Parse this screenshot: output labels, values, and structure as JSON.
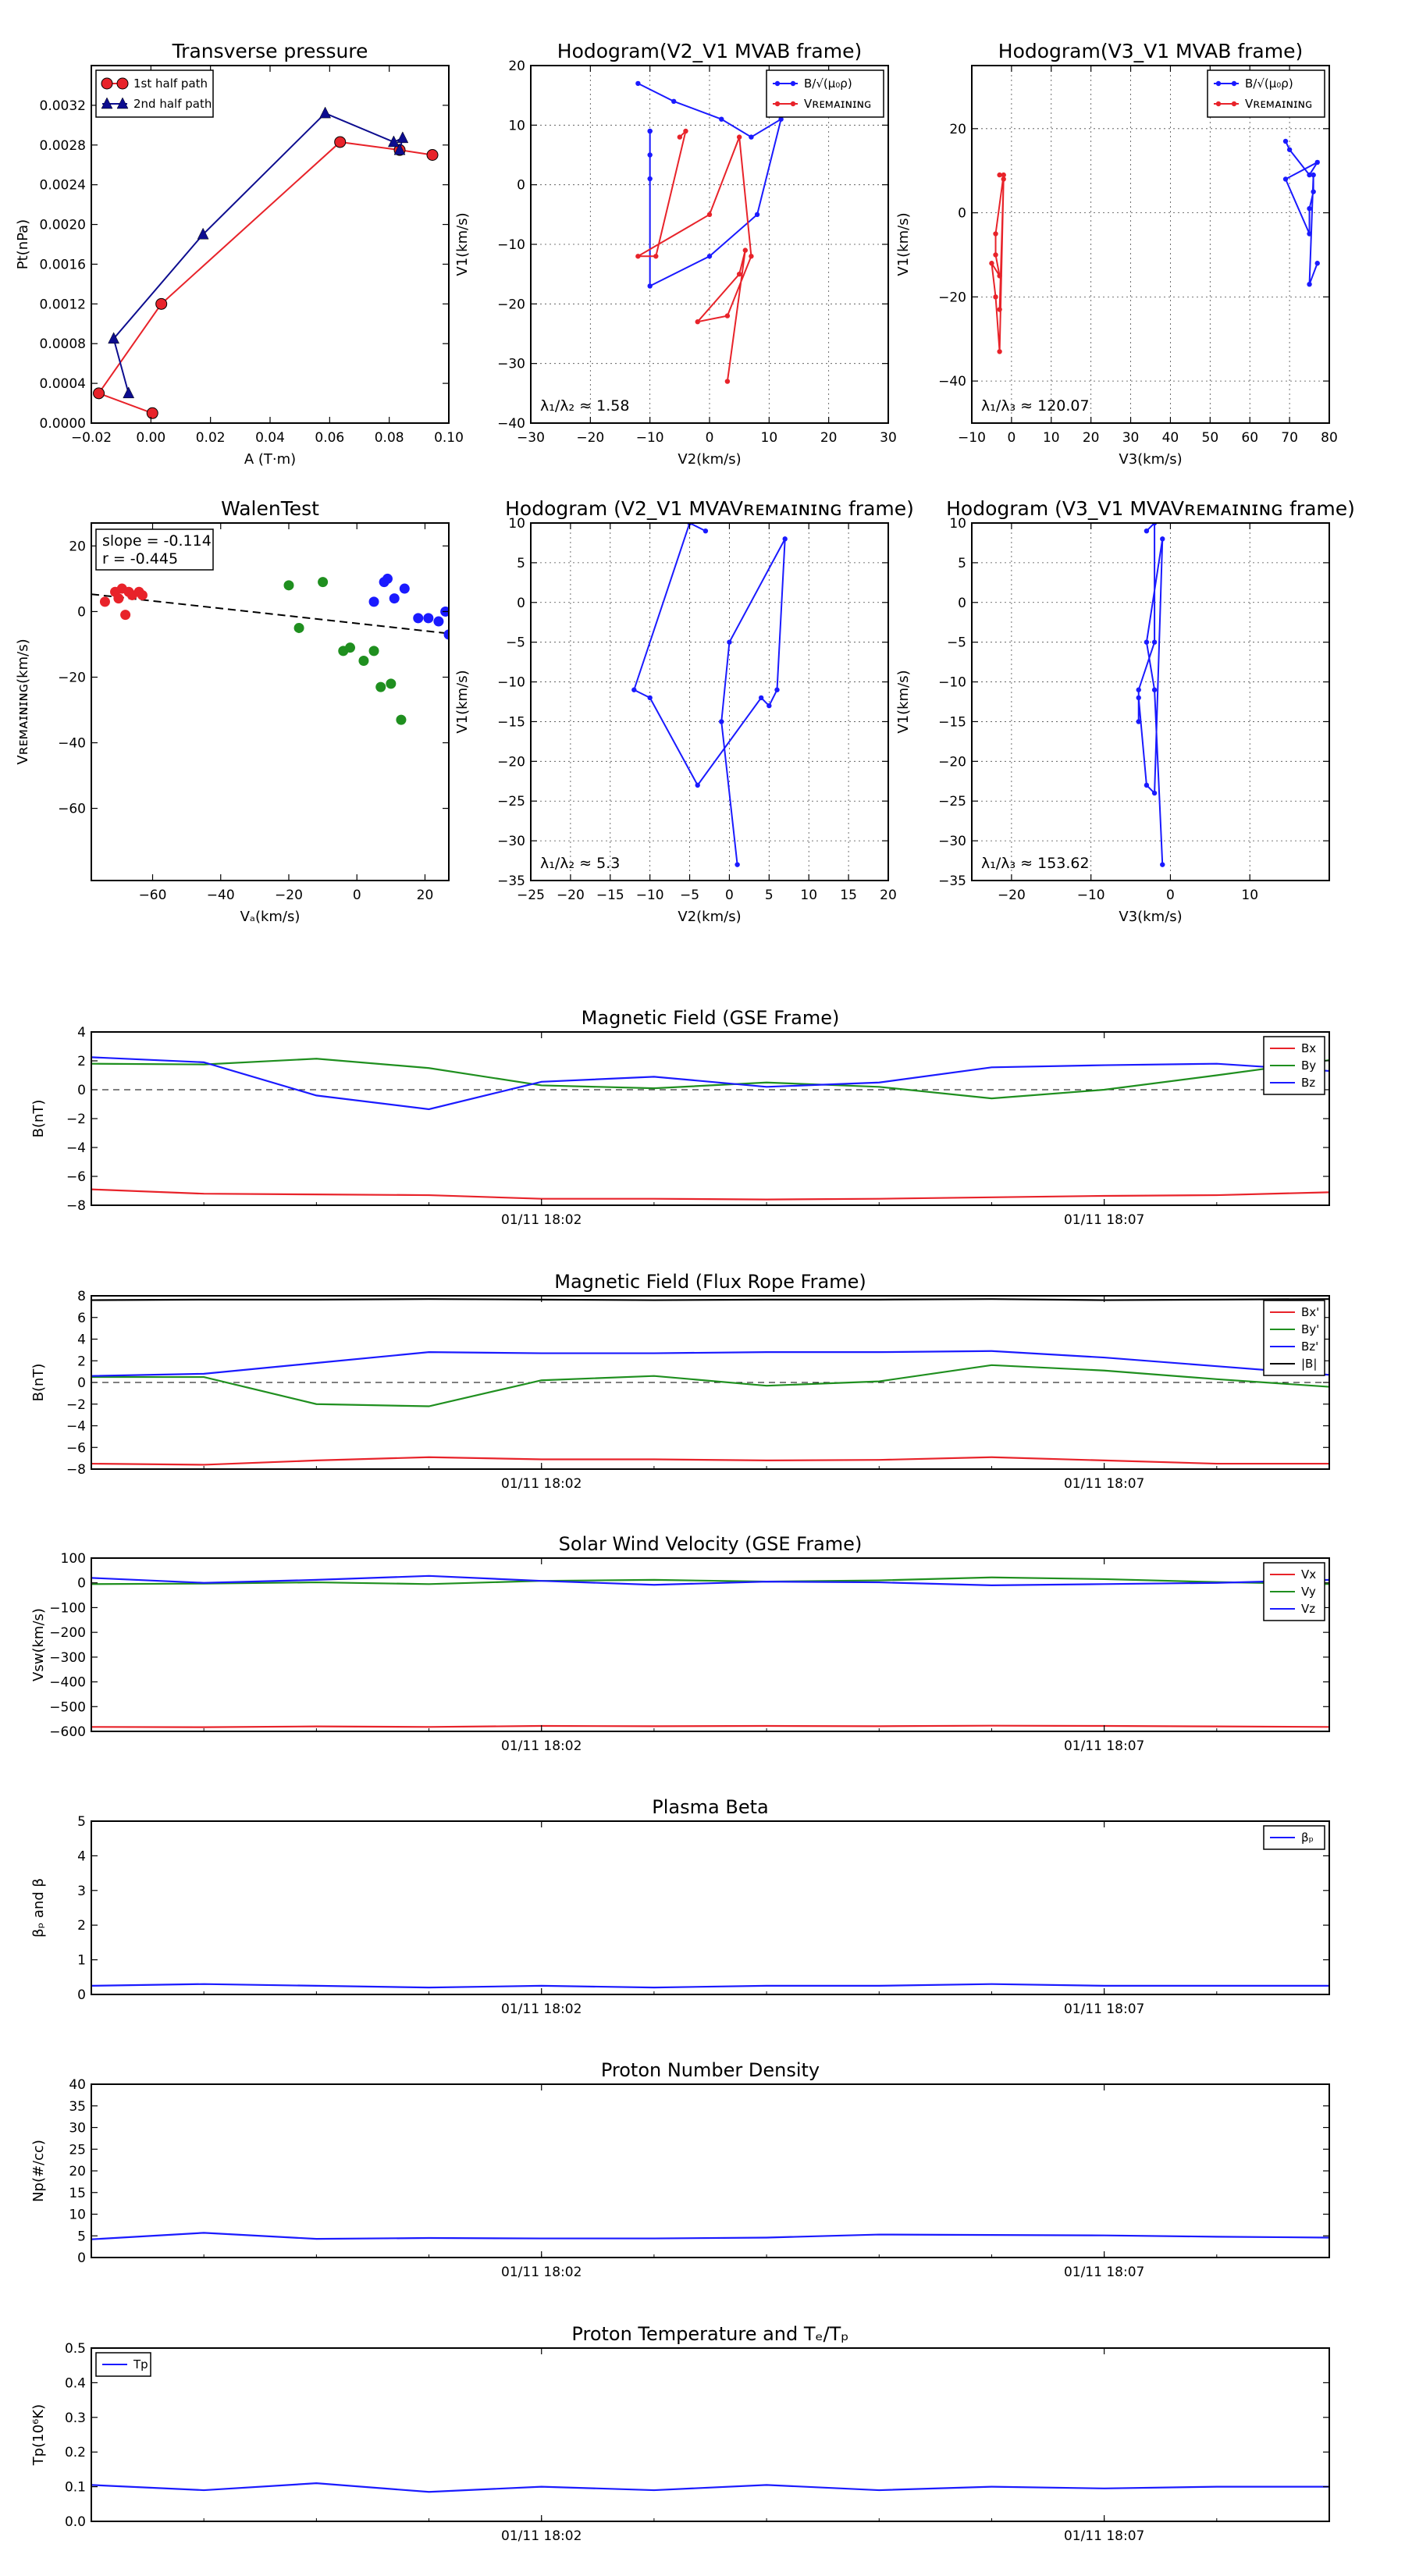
{
  "chart_data": [
    {
      "id": "p_tp",
      "type": "line",
      "title": "Transverse pressure",
      "xlabel": "A (T·m)",
      "ylabel": "Pt(nPa)",
      "xlim": [
        -0.02,
        0.1
      ],
      "ylim": [
        0,
        0.0036
      ],
      "xticks": [
        -0.02,
        0.0,
        0.02,
        0.04,
        0.06,
        0.08,
        0.1
      ],
      "xticklabels": [
        "−0.02",
        "0.00",
        "0.02",
        "0.04",
        "0.06",
        "0.08",
        "0.10"
      ],
      "yticks": [
        0,
        0.0004,
        0.0008,
        0.0012,
        0.0016,
        0.002,
        0.0024,
        0.0028,
        0.0032
      ],
      "yticklabels": [
        "0.0000",
        "0.0004",
        "0.0008",
        "0.0012",
        "0.0016",
        "0.0020",
        "0.0024",
        "0.0028",
        "0.0032"
      ],
      "grid": false,
      "legend": "top-left",
      "series": [
        {
          "name": "1st half path",
          "color": "#e8232a",
          "marker": "circle",
          "x": [
            0.0005,
            -0.0175,
            0.0035,
            0.0635,
            0.0835,
            0.0945
          ],
          "y": [
            0.0001,
            0.0003,
            0.0012,
            0.00283,
            0.00275,
            0.0027
          ]
        },
        {
          "name": "2nd half path",
          "color": "#0d0d8f",
          "marker": "triangle",
          "x": [
            -0.0075,
            -0.0125,
            0.0175,
            0.0585,
            0.0815,
            0.0845,
            0.0835
          ],
          "y": [
            0.0003,
            0.00085,
            0.0019,
            0.00312,
            0.00283,
            0.00287,
            0.00275
          ]
        }
      ]
    },
    {
      "id": "p_hv2",
      "type": "line",
      "title": "Hodogram(V2_V1 MVAB frame)",
      "xlabel": "V2(km/s)",
      "ylabel": "V1(km/s)",
      "xlim": [
        -30,
        30
      ],
      "ylim": [
        -40,
        20
      ],
      "xticks": [
        -30,
        -20,
        -10,
        0,
        10,
        20,
        30
      ],
      "xticklabels": [
        "−30",
        "−20",
        "−10",
        "0",
        "10",
        "20",
        "30"
      ],
      "yticks": [
        -40,
        -30,
        -20,
        -10,
        0,
        10,
        20
      ],
      "yticklabels": [
        "−40",
        "−30",
        "−20",
        "−10",
        "0",
        "10",
        "20"
      ],
      "grid": true,
      "legend": "top-right",
      "annotation": "λ₁/λ₂ ≈ 1.58",
      "series": [
        {
          "name": "B/√(μ₀ρ)",
          "color": "#1a1aff",
          "x": [
            -12,
            -6,
            2,
            7,
            12,
            8,
            0,
            -10,
            -10,
            -10,
            -10,
            -10
          ],
          "y": [
            17,
            14,
            11,
            8,
            11,
            -5,
            -12,
            -17,
            1,
            5,
            9,
            9
          ]
        },
        {
          "name": "Vʀᴇᴍᴀɪɴɪɴɢ",
          "color": "#e8232a",
          "x": [
            -5,
            -4,
            -9,
            -12,
            0,
            5,
            7,
            3,
            -2,
            5,
            6,
            3
          ],
          "y": [
            8,
            9,
            -12,
            -12,
            -5,
            8,
            -12,
            -22,
            -23,
            -15,
            -11,
            -33
          ]
        }
      ]
    },
    {
      "id": "p_hv3",
      "type": "line",
      "title": "Hodogram(V3_V1 MVAB frame)",
      "xlabel": "V3(km/s)",
      "ylabel": "V1(km/s)",
      "xlim": [
        -10,
        80
      ],
      "ylim": [
        -50,
        35
      ],
      "xticks": [
        -10,
        0,
        10,
        20,
        30,
        40,
        50,
        60,
        70,
        80
      ],
      "xticklabels": [
        "−10",
        "0",
        "10",
        "20",
        "30",
        "40",
        "50",
        "60",
        "70",
        "80"
      ],
      "yticks": [
        -40,
        -20,
        0,
        20
      ],
      "yticklabels": [
        "−40",
        "−20",
        "0",
        "20"
      ],
      "grid": true,
      "legend": "top-right",
      "annotation": "λ₁/λ₃ ≈ 120.07",
      "series": [
        {
          "name": "B/√(μ₀ρ)",
          "color": "#1a1aff",
          "x": [
            69,
            70,
            75,
            77,
            69,
            75,
            75,
            76,
            76,
            75,
            77
          ],
          "y": [
            17,
            15,
            9,
            12,
            8,
            -5,
            1,
            5,
            9,
            -17,
            -12
          ]
        },
        {
          "name": "Vʀᴇᴍᴀɪɴɪɴɢ",
          "color": "#e8232a",
          "x": [
            -3,
            -2,
            -4,
            -4,
            -3,
            -5,
            -4,
            -3,
            -2,
            -3
          ],
          "y": [
            9,
            9,
            -5,
            -10,
            -15,
            -12,
            -20,
            -33,
            8,
            -23
          ]
        }
      ]
    },
    {
      "id": "p_walen",
      "type": "scatter",
      "title": "WalenTest",
      "xlabel": "Vₐ(km/s)",
      "ylabel": "Vʀᴇᴍᴀɪɴɪɴɢ(km/s)",
      "xlim": [
        -78,
        27
      ],
      "ylim": [
        -82,
        27
      ],
      "xticks": [
        -60,
        -40,
        -20,
        0,
        20
      ],
      "xticklabels": [
        "−60",
        "−40",
        "−20",
        "0",
        "20"
      ],
      "yticks": [
        -60,
        -40,
        -20,
        0,
        20
      ],
      "yticklabels": [
        "−60",
        "−40",
        "−20",
        "0",
        "20"
      ],
      "grid": false,
      "annotation": [
        "slope = -0.114",
        "r = -0.445"
      ],
      "fit_line": {
        "slope": -0.114,
        "intercept": -3.6
      },
      "series": [
        {
          "color": "#e8232a",
          "x": [
            -71,
            -69,
            -67,
            -66,
            -64,
            -63,
            -70,
            -74,
            -68
          ],
          "y": [
            6,
            7,
            6,
            5,
            6,
            5,
            4,
            3,
            -1
          ]
        },
        {
          "color": "#1f8f1f",
          "x": [
            -20,
            -10,
            -17,
            -4,
            -2,
            2,
            5,
            7,
            10,
            13
          ],
          "y": [
            8,
            9,
            -5,
            -12,
            -11,
            -15,
            -12,
            -23,
            -22,
            -33
          ]
        },
        {
          "color": "#1a1aff",
          "x": [
            5,
            8,
            9,
            11,
            14,
            18,
            21,
            24,
            26,
            27
          ],
          "y": [
            3,
            9,
            10,
            4,
            7,
            -2,
            -2,
            -3,
            0,
            -7
          ]
        }
      ]
    },
    {
      "id": "p_hv2r",
      "type": "line",
      "title": "Hodogram (V2_V1 MVAVʀᴇᴍᴀɪɴɪɴɢ frame)",
      "xlabel": "V2(km/s)",
      "ylabel": "V1(km/s)",
      "xlim": [
        -25,
        20
      ],
      "ylim": [
        -35,
        10
      ],
      "xticks": [
        -25,
        -20,
        -15,
        -10,
        -5,
        0,
        5,
        10,
        15,
        20
      ],
      "xticklabels": [
        "−25",
        "−20",
        "−15",
        "−10",
        "−5",
        "0",
        "5",
        "10",
        "15",
        "20"
      ],
      "yticks": [
        -35,
        -30,
        -25,
        -20,
        -15,
        -10,
        -5,
        0,
        5,
        10
      ],
      "yticklabels": [
        "−35",
        "−30",
        "−25",
        "−20",
        "−15",
        "−10",
        "−5",
        "0",
        "5",
        "10"
      ],
      "grid": true,
      "annotation": "λ₁/λ₂ ≈ 5.3",
      "series": [
        {
          "color": "#1a1aff",
          "x": [
            -3,
            -5,
            -12,
            -10,
            -4,
            4,
            5,
            6,
            7,
            0,
            -1,
            1
          ],
          "y": [
            9,
            10,
            -11,
            -12,
            -23,
            -12,
            -13,
            -11,
            8,
            -5,
            -15,
            -33
          ]
        }
      ]
    },
    {
      "id": "p_hv3r",
      "type": "line",
      "title": "Hodogram (V3_V1 MVAVʀᴇᴍᴀɪɴɪɴɢ frame)",
      "xlabel": "V3(km/s)",
      "ylabel": "V1(km/s)",
      "xlim": [
        -25,
        20
      ],
      "ylim": [
        -35,
        10
      ],
      "xticks": [
        -20,
        -10,
        0,
        10
      ],
      "xticklabels": [
        "−20",
        "−10",
        "0",
        "10"
      ],
      "yticks": [
        -35,
        -30,
        -25,
        -20,
        -15,
        -10,
        -5,
        0,
        5,
        10
      ],
      "yticklabels": [
        "−35",
        "−30",
        "−25",
        "−20",
        "−15",
        "−10",
        "−5",
        "0",
        "5",
        "10"
      ],
      "grid": true,
      "annotation": "λ₁/λ₃ ≈ 153.62",
      "series": [
        {
          "color": "#1a1aff",
          "x": [
            -3,
            -2,
            -2,
            -4,
            -4,
            -4,
            -3,
            -2,
            -1,
            -3,
            -2,
            -1
          ],
          "y": [
            9,
            10,
            -5,
            -11,
            -15,
            -12,
            -23,
            -24,
            8,
            -5,
            -11,
            -33
          ]
        }
      ]
    },
    {
      "id": "p_bgse",
      "type": "line",
      "title": "Magnetic Field (GSE Frame)",
      "ylabel": "B(nT)",
      "x": [
        0,
        1,
        2,
        3,
        4,
        5,
        6,
        7,
        8,
        9,
        10,
        11
      ],
      "xlim": [
        0,
        11
      ],
      "ylim": [
        -8,
        4
      ],
      "yticks": [
        -8,
        -6,
        -4,
        -2,
        0,
        2,
        4
      ],
      "yticklabels": [
        "−8",
        "−6",
        "−4",
        "−2",
        "0",
        "2",
        "4"
      ],
      "time_ticks": {
        "positions": [
          4,
          9
        ],
        "labels": [
          "01/11 18:02",
          "01/11 18:07"
        ]
      },
      "zero_line": true,
      "legend": "top-right",
      "series": [
        {
          "name": "Bx",
          "color": "#e8232a",
          "values": [
            -6.9,
            -7.2,
            -7.25,
            -7.3,
            -7.55,
            -7.55,
            -7.6,
            -7.55,
            -7.45,
            -7.35,
            -7.3,
            -7.1
          ]
        },
        {
          "name": "By",
          "color": "#1f8f1f",
          "values": [
            1.8,
            1.75,
            2.15,
            1.5,
            0.3,
            0.1,
            0.5,
            0.2,
            -0.6,
            0.0,
            1.0,
            2.05
          ]
        },
        {
          "name": "Bz",
          "color": "#1a1aff",
          "values": [
            2.25,
            1.9,
            -0.4,
            -1.35,
            0.55,
            0.9,
            0.2,
            0.5,
            1.55,
            1.7,
            1.8,
            1.3
          ]
        }
      ]
    },
    {
      "id": "p_bfr",
      "type": "line",
      "title": "Magnetic Field (Flux Rope Frame)",
      "ylabel": "B(nT)",
      "x": [
        0,
        1,
        2,
        3,
        4,
        5,
        6,
        7,
        8,
        9,
        10,
        11
      ],
      "xlim": [
        0,
        11
      ],
      "ylim": [
        -8,
        8
      ],
      "yticks": [
        -8,
        -6,
        -4,
        -2,
        0,
        2,
        4,
        6,
        8
      ],
      "yticklabels": [
        "−8",
        "−6",
        "−4",
        "−2",
        "0",
        "2",
        "4",
        "6",
        "8"
      ],
      "time_ticks": {
        "positions": [
          4,
          9
        ],
        "labels": [
          "01/11 18:02",
          "01/11 18:07"
        ]
      },
      "zero_line": true,
      "legend": "top-right",
      "series": [
        {
          "name": "Bx'",
          "color": "#e8232a",
          "values": [
            -7.5,
            -7.6,
            -7.2,
            -6.9,
            -7.1,
            -7.1,
            -7.2,
            -7.15,
            -6.9,
            -7.2,
            -7.5,
            -7.5
          ]
        },
        {
          "name": "By'",
          "color": "#1f8f1f",
          "values": [
            0.5,
            0.5,
            -2.0,
            -2.2,
            0.2,
            0.6,
            -0.3,
            0.1,
            1.6,
            1.1,
            0.3,
            -0.4
          ]
        },
        {
          "name": "Bz'",
          "color": "#1a1aff",
          "values": [
            0.6,
            0.8,
            1.8,
            2.8,
            2.7,
            2.7,
            2.8,
            2.8,
            2.9,
            2.3,
            1.5,
            0.7
          ]
        },
        {
          "name": "|B|",
          "color": "#000000",
          "values": [
            7.6,
            7.65,
            7.65,
            7.7,
            7.65,
            7.6,
            7.65,
            7.65,
            7.7,
            7.6,
            7.65,
            7.7
          ]
        }
      ]
    },
    {
      "id": "p_vsw",
      "type": "line",
      "title": "Solar Wind Velocity (GSE Frame)",
      "ylabel": "Vsw(km/s)",
      "x": [
        0,
        1,
        2,
        3,
        4,
        5,
        6,
        7,
        8,
        9,
        10,
        11
      ],
      "xlim": [
        0,
        11
      ],
      "ylim": [
        -600,
        100
      ],
      "yticks": [
        -600,
        -500,
        -400,
        -300,
        -200,
        -100,
        0,
        100
      ],
      "yticklabels": [
        "−600",
        "−500",
        "−400",
        "−300",
        "−200",
        "−100",
        "0",
        "100"
      ],
      "time_ticks": {
        "positions": [
          4,
          9
        ],
        "labels": [
          "01/11 18:02",
          "01/11 18:07"
        ]
      },
      "legend": "top-right",
      "series": [
        {
          "name": "Vx",
          "color": "#e8232a",
          "values": [
            -582,
            -583,
            -580,
            -582,
            -578,
            -579,
            -578,
            -579,
            -577,
            -578,
            -580,
            -582
          ]
        },
        {
          "name": "Vy",
          "color": "#1f8f1f",
          "values": [
            -5,
            -3,
            2,
            -5,
            8,
            12,
            5,
            10,
            22,
            15,
            3,
            -5
          ]
        },
        {
          "name": "Vz",
          "color": "#1a1aff",
          "values": [
            20,
            0,
            12,
            28,
            8,
            -8,
            5,
            2,
            -10,
            -5,
            0,
            12
          ]
        }
      ]
    },
    {
      "id": "p_beta",
      "type": "line",
      "title": "Plasma Beta",
      "ylabel": "βₚ and β",
      "x": [
        0,
        1,
        2,
        3,
        4,
        5,
        6,
        7,
        8,
        9,
        10,
        11
      ],
      "xlim": [
        0,
        11
      ],
      "ylim": [
        0,
        5
      ],
      "yticks": [
        0,
        1,
        2,
        3,
        4,
        5
      ],
      "yticklabels": [
        "0",
        "1",
        "2",
        "3",
        "4",
        "5"
      ],
      "time_ticks": {
        "positions": [
          4,
          9
        ],
        "labels": [
          "01/11 18:02",
          "01/11 18:07"
        ]
      },
      "legend": "top-right",
      "series": [
        {
          "name": "βₚ",
          "color": "#1a1aff",
          "values": [
            0.25,
            0.3,
            0.25,
            0.2,
            0.25,
            0.2,
            0.25,
            0.25,
            0.3,
            0.25,
            0.25,
            0.25
          ]
        }
      ]
    },
    {
      "id": "p_np",
      "type": "line",
      "title": "Proton Number Density",
      "ylabel": "Np(#/cc)",
      "x": [
        0,
        1,
        2,
        3,
        4,
        5,
        6,
        7,
        8,
        9,
        10,
        11
      ],
      "xlim": [
        0,
        11
      ],
      "ylim": [
        0,
        40
      ],
      "yticks": [
        0,
        5,
        10,
        15,
        20,
        25,
        30,
        35,
        40
      ],
      "yticklabels": [
        "0",
        "5",
        "10",
        "15",
        "20",
        "25",
        "30",
        "35",
        "40"
      ],
      "time_ticks": {
        "positions": [
          4,
          9
        ],
        "labels": [
          "01/11 18:02",
          "01/11 18:07"
        ]
      },
      "series": [
        {
          "color": "#1a1aff",
          "values": [
            4.2,
            5.7,
            4.3,
            4.5,
            4.4,
            4.4,
            4.6,
            5.3,
            5.2,
            5.1,
            4.8,
            4.6
          ]
        }
      ]
    },
    {
      "id": "p_tpr",
      "type": "line",
      "title": "Proton Temperature and Tₑ/Tₚ",
      "ylabel": "Tp(10⁶K)",
      "x": [
        0,
        1,
        2,
        3,
        4,
        5,
        6,
        7,
        8,
        9,
        10,
        11
      ],
      "xlim": [
        0,
        11
      ],
      "ylim": [
        0,
        0.5
      ],
      "yticks": [
        0,
        0.1,
        0.2,
        0.3,
        0.4,
        0.5
      ],
      "yticklabels": [
        "0.0",
        "0.1",
        "0.2",
        "0.3",
        "0.4",
        "0.5"
      ],
      "time_ticks": {
        "positions": [
          4,
          9
        ],
        "labels": [
          "01/11 18:02",
          "01/11 18:07"
        ]
      },
      "legend": "top-left",
      "series": [
        {
          "name": "Tp",
          "color": "#1a1aff",
          "values": [
            0.105,
            0.09,
            0.11,
            0.085,
            0.1,
            0.09,
            0.105,
            0.09,
            0.1,
            0.095,
            0.1,
            0.1
          ]
        }
      ]
    }
  ]
}
